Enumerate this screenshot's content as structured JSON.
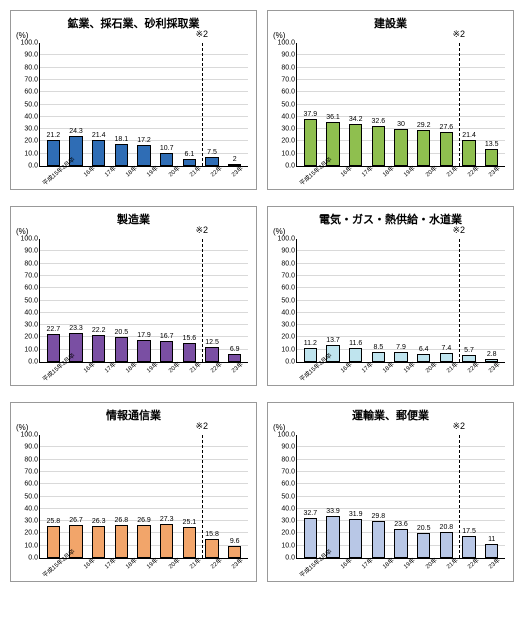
{
  "global": {
    "y_axis_label": "(%)",
    "ylim": [
      0,
      100
    ],
    "ytick_step": 10,
    "grid_color": "#d9d9d9",
    "background_color": "#ffffff",
    "dashed_split_after_index": 7,
    "annotation_text": "※2",
    "x_categories": [
      "平成15年3月卒",
      "16年",
      "17年",
      "18年",
      "19年",
      "20年",
      "21年",
      "22年",
      "23年"
    ]
  },
  "charts": [
    {
      "title": "鉱業、採石業、砂利採取業",
      "type": "bar",
      "values": [
        21.2,
        24.3,
        21.4,
        18.1,
        17.2,
        10.7,
        6.1,
        7.5,
        2.0
      ],
      "bar_fill": "#2f6db5",
      "bar_border": "#000000"
    },
    {
      "title": "建設業",
      "type": "bar",
      "values": [
        37.9,
        36.1,
        34.2,
        32.6,
        30.0,
        29.2,
        27.6,
        21.4,
        13.5
      ],
      "bar_fill": "#8fbf4f",
      "bar_border": "#000000"
    },
    {
      "title": "製造業",
      "type": "bar",
      "values": [
        22.7,
        23.3,
        22.2,
        20.5,
        17.9,
        16.7,
        15.6,
        12.5,
        6.9
      ],
      "bar_fill": "#7a4fa3",
      "bar_border": "#000000"
    },
    {
      "title": "電気・ガス・熱供給・水道業",
      "type": "bar",
      "values": [
        11.2,
        13.7,
        11.6,
        8.5,
        7.9,
        6.4,
        7.4,
        5.7,
        2.8
      ],
      "bar_fill": "#bfe4ee",
      "bar_border": "#000000"
    },
    {
      "title": "情報通信業",
      "type": "bar",
      "values": [
        25.8,
        26.7,
        26.3,
        26.8,
        26.9,
        27.3,
        25.1,
        15.8,
        9.6
      ],
      "bar_fill": "#f2a56a",
      "bar_border": "#000000"
    },
    {
      "title": "運輸業、郵便業",
      "type": "bar",
      "values": [
        32.7,
        33.9,
        31.9,
        29.8,
        23.6,
        20.5,
        20.8,
        17.5,
        11.0
      ],
      "bar_fill": "#b8c7e6",
      "bar_border": "#000000"
    }
  ]
}
